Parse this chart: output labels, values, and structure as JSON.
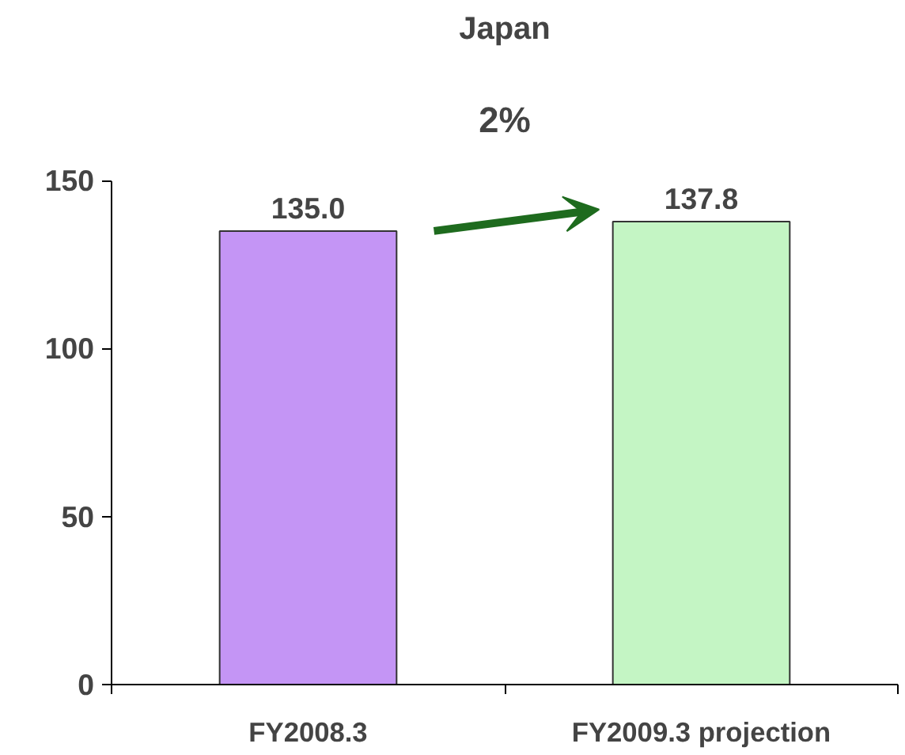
{
  "chart_data": {
    "type": "bar",
    "title": "Japan",
    "categories": [
      "FY2008.3",
      "FY2009.3 projection"
    ],
    "values": [
      135.0,
      137.8
    ],
    "colors": [
      "#c495f5",
      "#c4f5c4"
    ],
    "value_labels": [
      "135.0",
      "137.8"
    ],
    "ylim": [
      0,
      150
    ],
    "yticks": [
      0,
      50,
      100,
      150
    ],
    "grid": false,
    "annotations": [
      "2%"
    ]
  }
}
